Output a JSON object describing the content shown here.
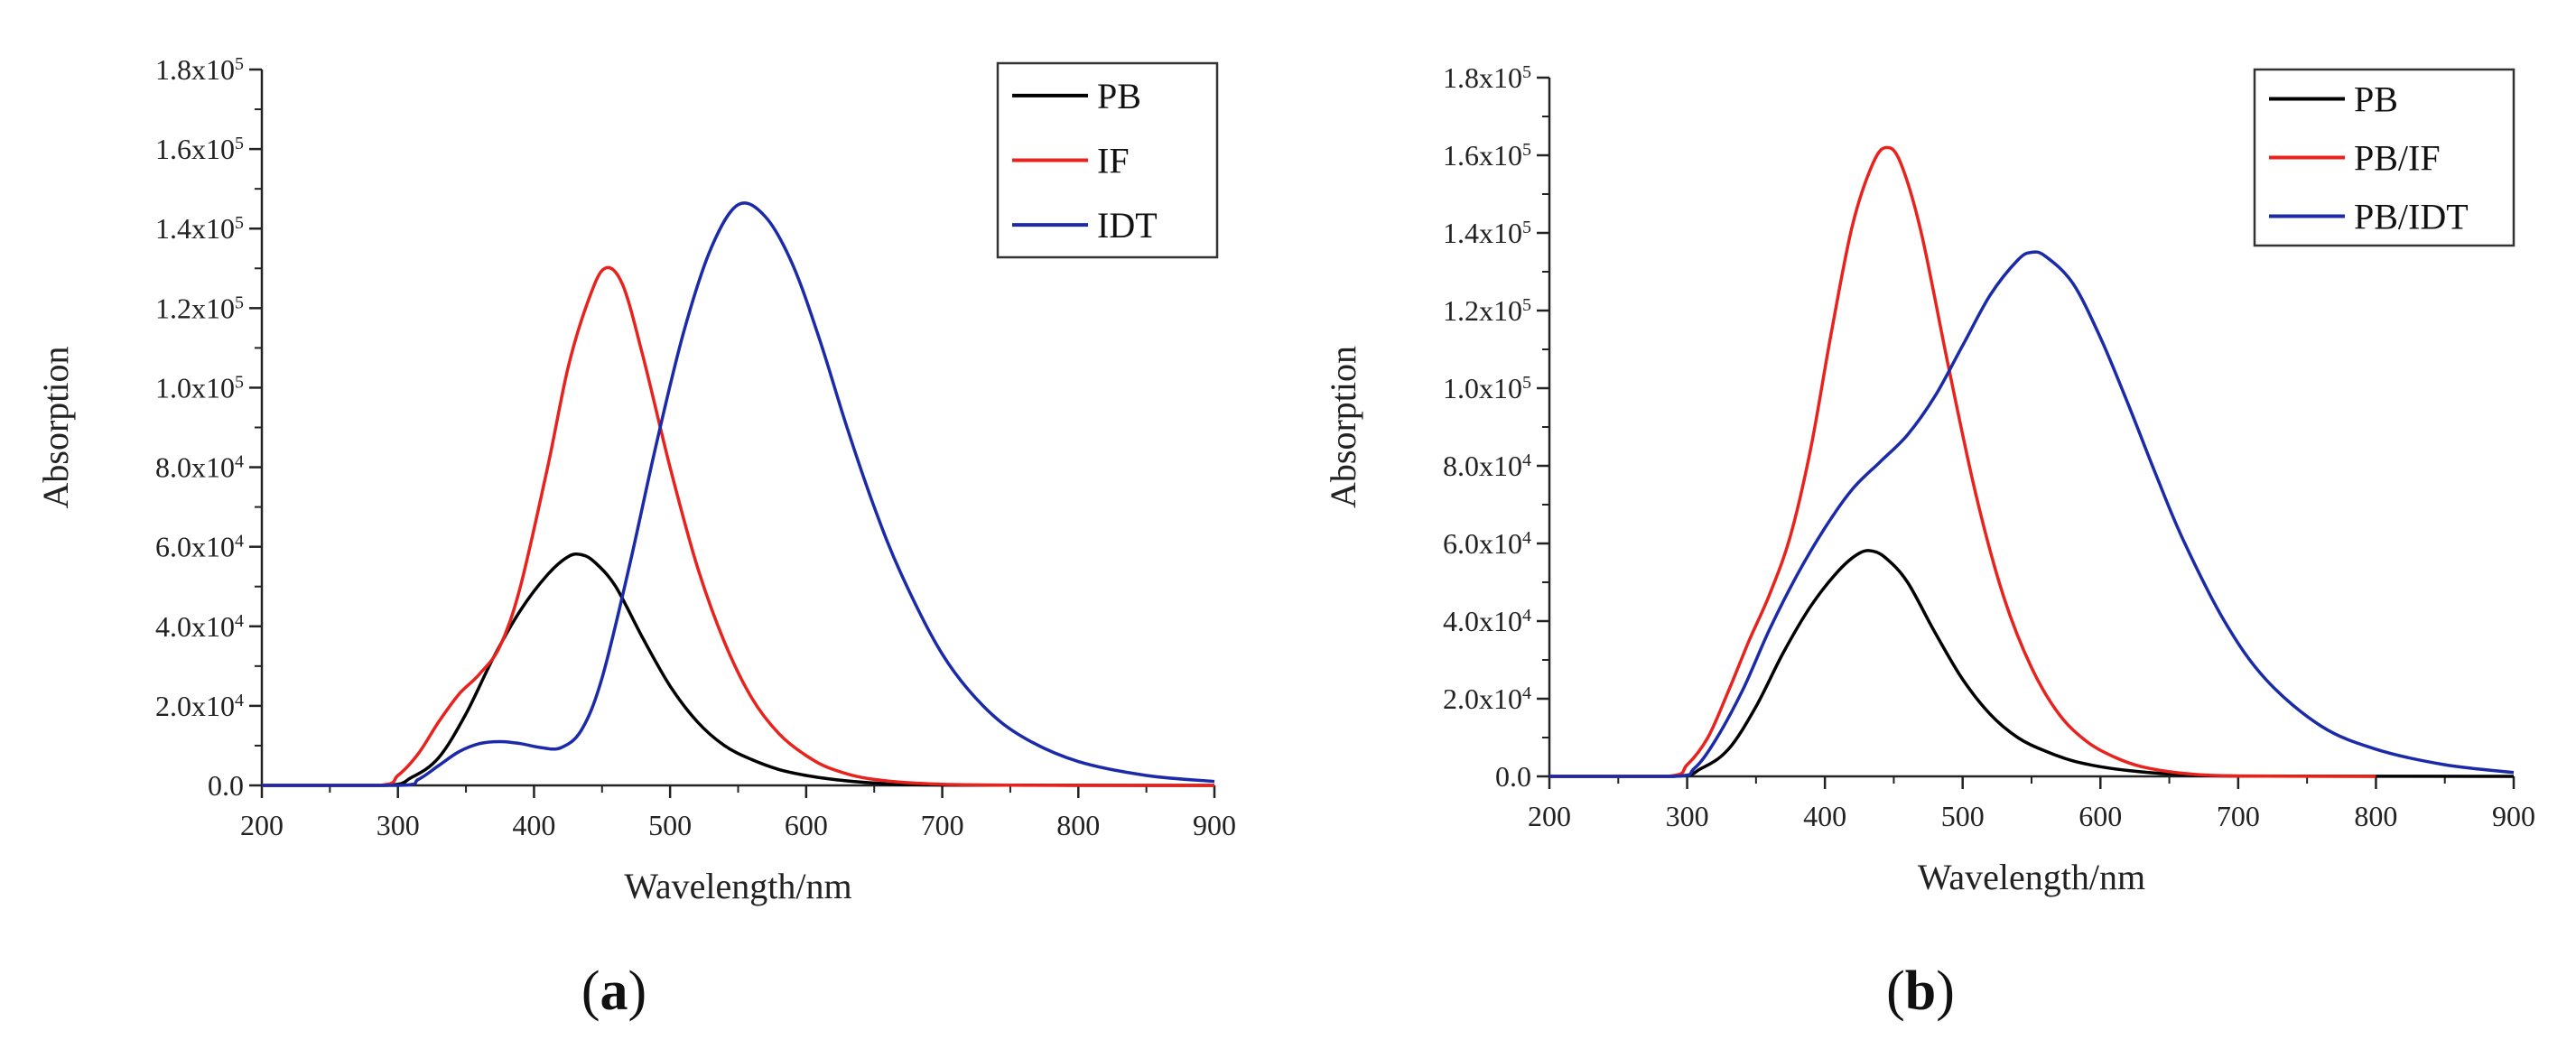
{
  "chart_data": [
    {
      "type": "line",
      "panel_label_open": "(",
      "panel_label": "a",
      "panel_label_close": ")",
      "xlabel": "Wavelength/nm",
      "ylabel": "Absorption",
      "xlim": [
        200,
        900
      ],
      "ylim": [
        0,
        180000
      ],
      "x_ticks": [
        "200",
        "300",
        "400",
        "500",
        "600",
        "700",
        "800",
        "900"
      ],
      "y_ticks": [
        {
          "value": 0,
          "mantissa": "0.0",
          "exp": ""
        },
        {
          "value": 20000,
          "mantissa": "2.0x10",
          "exp": "4"
        },
        {
          "value": 40000,
          "mantissa": "4.0x10",
          "exp": "4"
        },
        {
          "value": 60000,
          "mantissa": "6.0x10",
          "exp": "4"
        },
        {
          "value": 80000,
          "mantissa": "8.0x10",
          "exp": "4"
        },
        {
          "value": 100000,
          "mantissa": "1.0x10",
          "exp": "5"
        },
        {
          "value": 120000,
          "mantissa": "1.2x10",
          "exp": "5"
        },
        {
          "value": 140000,
          "mantissa": "1.4x10",
          "exp": "5"
        },
        {
          "value": 160000,
          "mantissa": "1.6x10",
          "exp": "5"
        },
        {
          "value": 180000,
          "mantissa": "1.8x10",
          "exp": "5"
        }
      ],
      "legend_position": "top-right",
      "series": [
        {
          "name": "PB",
          "color": "#000000",
          "x": [
            200,
            290,
            310,
            330,
            350,
            370,
            390,
            410,
            425,
            435,
            445,
            460,
            480,
            500,
            520,
            540,
            560,
            580,
            600,
            620,
            650,
            700,
            900
          ],
          "y": [
            0,
            0,
            2000,
            7000,
            18000,
            32000,
            44000,
            53000,
            57500,
            58000,
            56000,
            50000,
            37000,
            25000,
            16000,
            10000,
            6500,
            4000,
            2500,
            1500,
            600,
            100,
            0
          ]
        },
        {
          "name": "IF",
          "color": "#e8221c",
          "x": [
            200,
            285,
            300,
            315,
            330,
            345,
            360,
            375,
            390,
            410,
            425,
            440,
            452,
            465,
            480,
            500,
            520,
            540,
            560,
            580,
            600,
            620,
            650,
            700,
            800,
            900
          ],
          "y": [
            0,
            0,
            2500,
            8000,
            16000,
            23000,
            28000,
            35000,
            50000,
            80000,
            105000,
            122000,
            130000,
            126000,
            108000,
            80000,
            55000,
            36000,
            22000,
            13000,
            7500,
            4000,
            1500,
            300,
            0,
            0
          ]
        },
        {
          "name": "IDT",
          "color": "#1b2aa8",
          "x": [
            200,
            300,
            315,
            330,
            345,
            360,
            375,
            390,
            405,
            420,
            435,
            450,
            470,
            490,
            510,
            530,
            550,
            570,
            590,
            610,
            630,
            650,
            670,
            700,
            730,
            760,
            800,
            850,
            900
          ],
          "y": [
            0,
            0,
            1500,
            5000,
            8500,
            10500,
            11000,
            10500,
            9500,
            9500,
            14000,
            27000,
            55000,
            86000,
            114000,
            135000,
            146000,
            143000,
            131000,
            112000,
            90000,
            70000,
            53000,
            33000,
            20000,
            12000,
            6000,
            2500,
            1000
          ]
        }
      ]
    },
    {
      "type": "line",
      "panel_label_open": "(",
      "panel_label": "b",
      "panel_label_close": ")",
      "xlabel": "Wavelength/nm",
      "ylabel": "Absorption",
      "xlim": [
        200,
        900
      ],
      "ylim": [
        0,
        180000
      ],
      "x_ticks": [
        "200",
        "300",
        "400",
        "500",
        "600",
        "700",
        "800",
        "900"
      ],
      "y_ticks": [
        {
          "value": 0,
          "mantissa": "0.0",
          "exp": ""
        },
        {
          "value": 20000,
          "mantissa": "2.0x10",
          "exp": "4"
        },
        {
          "value": 40000,
          "mantissa": "4.0x10",
          "exp": "4"
        },
        {
          "value": 60000,
          "mantissa": "6.0x10",
          "exp": "4"
        },
        {
          "value": 80000,
          "mantissa": "8.0x10",
          "exp": "4"
        },
        {
          "value": 100000,
          "mantissa": "1.0x10",
          "exp": "5"
        },
        {
          "value": 120000,
          "mantissa": "1.2x10",
          "exp": "5"
        },
        {
          "value": 140000,
          "mantissa": "1.4x10",
          "exp": "5"
        },
        {
          "value": 160000,
          "mantissa": "1.6x10",
          "exp": "5"
        },
        {
          "value": 180000,
          "mantissa": "1.8x10",
          "exp": "5"
        }
      ],
      "legend_position": "top-right",
      "series": [
        {
          "name": "PB",
          "color": "#000000",
          "x": [
            200,
            290,
            310,
            330,
            350,
            370,
            390,
            410,
            425,
            435,
            445,
            460,
            480,
            500,
            520,
            540,
            560,
            580,
            600,
            620,
            650,
            700,
            900
          ],
          "y": [
            0,
            0,
            2000,
            7000,
            18000,
            32000,
            44000,
            53000,
            57500,
            58000,
            56000,
            50000,
            37000,
            25000,
            16000,
            10000,
            6500,
            4000,
            2500,
            1500,
            600,
            100,
            0
          ]
        },
        {
          "name": "PB/IF",
          "color": "#e8221c",
          "x": [
            200,
            285,
            300,
            315,
            330,
            345,
            360,
            375,
            390,
            405,
            420,
            435,
            445,
            455,
            470,
            490,
            510,
            530,
            550,
            570,
            590,
            610,
            630,
            660,
            700,
            800
          ],
          "y": [
            0,
            0,
            3000,
            10000,
            22000,
            35000,
            47000,
            62000,
            85000,
            115000,
            142000,
            158000,
            162000,
            158000,
            140000,
            105000,
            72000,
            46000,
            28000,
            16000,
            9000,
            5000,
            2500,
            800,
            100,
            0
          ]
        },
        {
          "name": "PB/IDT",
          "color": "#1b2aa8",
          "x": [
            200,
            290,
            305,
            320,
            340,
            360,
            380,
            400,
            420,
            440,
            460,
            480,
            500,
            520,
            540,
            550,
            560,
            580,
            600,
            620,
            640,
            660,
            690,
            720,
            760,
            800,
            850,
            900
          ],
          "y": [
            0,
            0,
            2000,
            9000,
            22000,
            38000,
            52000,
            64000,
            74000,
            81000,
            88000,
            98000,
            111000,
            124000,
            133000,
            135000,
            134000,
            127000,
            113000,
            96000,
            78000,
            61000,
            40000,
            25000,
            13000,
            7000,
            3000,
            1000
          ]
        }
      ]
    }
  ]
}
